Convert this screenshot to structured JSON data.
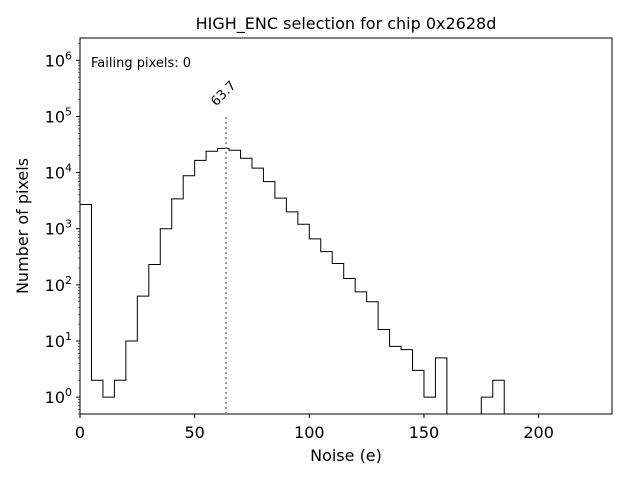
{
  "chart_data": {
    "type": "histogram",
    "title": "HIGH_ENC selection for chip 0x2628d",
    "xlabel": "Noise (e)",
    "ylabel": "Number of pixels",
    "xlim": [
      0,
      232
    ],
    "ylim": [
      0.5,
      2500000
    ],
    "yscale": "log",
    "grid": false,
    "x_ticks": [
      0,
      50,
      100,
      150,
      200
    ],
    "x_tick_labels": [
      "0",
      "50",
      "100",
      "150",
      "200"
    ],
    "y_ticks": [
      1,
      10,
      100,
      1000,
      10000,
      100000,
      1000000
    ],
    "y_tick_labels": [
      {
        "base": "10",
        "exp": "0"
      },
      {
        "base": "10",
        "exp": "1"
      },
      {
        "base": "10",
        "exp": "2"
      },
      {
        "base": "10",
        "exp": "3"
      },
      {
        "base": "10",
        "exp": "4"
      },
      {
        "base": "10",
        "exp": "5"
      },
      {
        "base": "10",
        "exp": "6"
      }
    ],
    "bin_width": 5,
    "bin_start": 0,
    "counts": [
      2700,
      2,
      1,
      2,
      10,
      63,
      230,
      1000,
      3400,
      8800,
      16500,
      24000,
      27000,
      25000,
      18000,
      12000,
      6900,
      3500,
      2000,
      1200,
      660,
      390,
      240,
      130,
      75,
      50,
      16,
      8,
      7,
      3,
      1,
      5,
      0,
      0,
      0,
      1,
      2,
      0
    ],
    "mean_line": {
      "value": 63.7,
      "label": "63.7"
    },
    "annotation": {
      "text": "Failing pixels: 0",
      "color": "#e00000"
    },
    "colors": {
      "histogram": "#000000",
      "mean_line": "#808080",
      "mean_label": "#808080"
    }
  }
}
